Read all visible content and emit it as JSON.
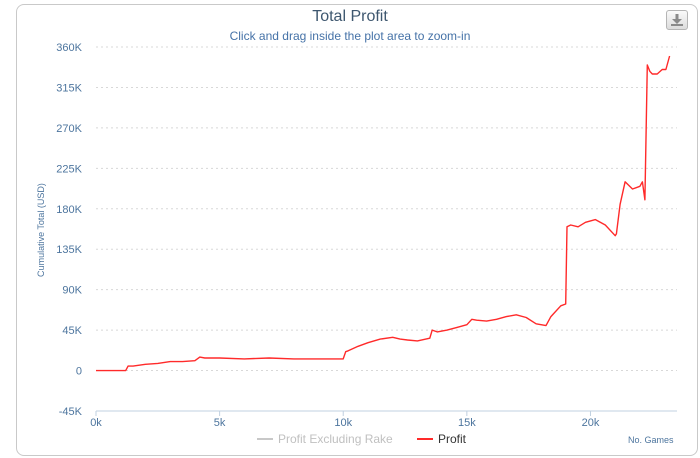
{
  "header": {
    "title": "Total Profit",
    "subtitle": "Click and drag inside the plot area to zoom-in"
  },
  "toolbar": {
    "export_icon": "download-icon"
  },
  "colors": {
    "profit": "#ff2a2a",
    "profit_excluding_rake": "#c8c8c8",
    "axis_text": "#4d759e",
    "title": "#3e576f",
    "subtitle": "#4572a7"
  },
  "chart_data": {
    "type": "line",
    "title": "Total Profit",
    "subtitle": "Click and drag inside the plot area to zoom-in",
    "xlabel": "No. Games",
    "ylabel": "Cumulative Total (USD)",
    "xlim": [
      0,
      23500
    ],
    "ylim": [
      -45000,
      360000
    ],
    "x_ticks": [
      0,
      5000,
      10000,
      15000,
      20000
    ],
    "x_tick_labels": [
      "0k",
      "5k",
      "10k",
      "15k",
      "20k"
    ],
    "y_ticks": [
      -45000,
      0,
      45000,
      90000,
      135000,
      180000,
      225000,
      270000,
      315000,
      360000
    ],
    "y_tick_labels": [
      "-45K",
      "0",
      "45K",
      "90K",
      "135K",
      "180K",
      "225K",
      "270K",
      "315K",
      "360K"
    ],
    "grid": "y-dashed",
    "legend": "bottom",
    "series": [
      {
        "name": "Profit Excluding Rake",
        "color": "#c8c8c8",
        "hidden": true,
        "x": [],
        "y": []
      },
      {
        "name": "Profit",
        "color": "#ff2a2a",
        "x": [
          0,
          1200,
          1300,
          1500,
          2000,
          2500,
          3000,
          3500,
          4000,
          4200,
          4400,
          5000,
          6000,
          7000,
          8000,
          9000,
          10000,
          10100,
          10200,
          10600,
          11000,
          11500,
          12000,
          12300,
          12600,
          13000,
          13500,
          13600,
          13800,
          14200,
          14600,
          15000,
          15200,
          15400,
          15800,
          16200,
          16600,
          17000,
          17400,
          17800,
          18200,
          18400,
          18500,
          18800,
          19000,
          19050,
          19200,
          19500,
          19800,
          20200,
          20600,
          21000,
          21050,
          21200,
          21400,
          21700,
          22000,
          22100,
          22200,
          22300,
          22400,
          22500,
          22700,
          22900,
          23050,
          23200
        ],
        "y": [
          0,
          0,
          5000,
          5000,
          7000,
          8000,
          10000,
          10000,
          11000,
          15000,
          14000,
          14000,
          13000,
          14000,
          13000,
          13000,
          13000,
          21000,
          22000,
          27000,
          31000,
          35000,
          37000,
          35000,
          34000,
          33000,
          36000,
          45000,
          43000,
          45000,
          48000,
          51000,
          57000,
          56000,
          55000,
          57000,
          60000,
          62000,
          59000,
          52000,
          50000,
          60000,
          63000,
          72000,
          74000,
          160000,
          162000,
          160000,
          165000,
          168000,
          162000,
          150000,
          152000,
          185000,
          210000,
          202000,
          205000,
          210000,
          190000,
          340000,
          333000,
          330000,
          330000,
          335000,
          335000,
          350000
        ]
      }
    ]
  }
}
